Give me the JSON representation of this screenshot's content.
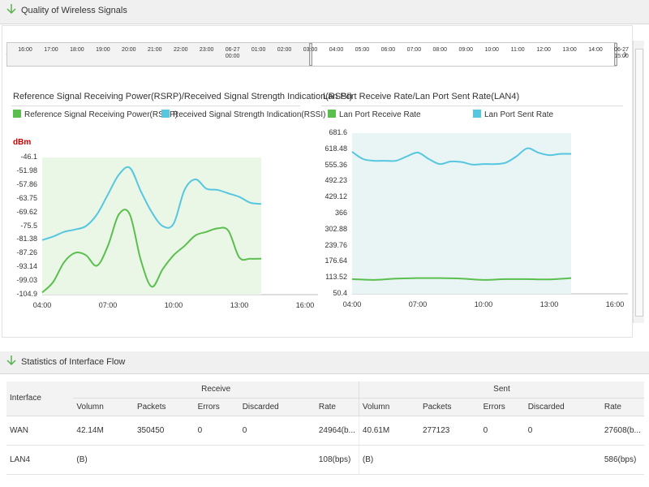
{
  "sections": {
    "wireless_title": "Quality of Wireless Signals",
    "flow_title": "Statistics of Interface Flow"
  },
  "timeline": {
    "ticks": [
      "16:00",
      "17:00",
      "18:00",
      "19:00",
      "20:00",
      "21:00",
      "22:00",
      "23:00",
      "06-27\n00:00",
      "01:00",
      "02:00",
      "03:00",
      "04:00",
      "05:00",
      "06:00",
      "07:00",
      "08:00",
      "09:00",
      "10:00",
      "11:00",
      "12:00",
      "13:00",
      "14:00",
      "06-27\n15:00"
    ]
  },
  "chart_data": [
    {
      "type": "area",
      "title": "Reference Signal Receiving Power(RSRP)/Received Signal Strength Indication(RSSI)",
      "unit": "dBm",
      "x_ticks": [
        "04:00",
        "07:00",
        "10:00",
        "13:00",
        "16:00"
      ],
      "y_ticks": [
        "-46.1",
        "-51.98",
        "-57.86",
        "-63.75",
        "-69.62",
        "-75.5",
        "-81.38",
        "-87.26",
        "-93.14",
        "-99.03",
        "-104.9"
      ],
      "ylim": [
        -104.9,
        -46.1
      ],
      "series": [
        {
          "name": "Reference Signal Receiving Power(RSRP)",
          "color": "#5bbf4f",
          "x": [
            4.0,
            4.5,
            5.0,
            5.5,
            6.0,
            6.5,
            7.0,
            7.5,
            8.0,
            8.5,
            9.0,
            9.5,
            10.0,
            10.5,
            11.0,
            11.5,
            12.0,
            12.5,
            13.0,
            13.5,
            14.0
          ],
          "values": [
            -104.0,
            -99.5,
            -91.0,
            -87.0,
            -88.0,
            -92.5,
            -84.0,
            -70.5,
            -70.5,
            -90.0,
            -101.5,
            -94.0,
            -88.0,
            -84.0,
            -79.5,
            -78.0,
            -76.5,
            -77.5,
            -89.0,
            -89.5,
            -89.5
          ]
        },
        {
          "name": "Received Signal Strength Indication(RSSI)",
          "color": "#57c6e0",
          "x": [
            4.0,
            4.5,
            5.0,
            5.5,
            6.0,
            6.5,
            7.0,
            7.5,
            8.0,
            8.5,
            9.0,
            9.5,
            10.0,
            10.5,
            11.0,
            11.5,
            12.0,
            12.5,
            13.0,
            13.5,
            14.0
          ],
          "values": [
            -81.5,
            -80.0,
            -78.0,
            -77.0,
            -75.5,
            -70.5,
            -62.0,
            -53.5,
            -50.5,
            -60.5,
            -69.5,
            -75.5,
            -74.5,
            -60.0,
            -55.5,
            -59.5,
            -60.0,
            -61.5,
            -63.0,
            -65.5,
            -66.0
          ]
        }
      ]
    },
    {
      "type": "area",
      "title": "Lan Port Receive Rate/Lan Port Sent Rate(LAN4)",
      "x_ticks": [
        "04:00",
        "07:00",
        "10:00",
        "13:00",
        "16:00"
      ],
      "y_ticks": [
        "681.6",
        "618.48",
        "555.36",
        "492.23",
        "429.12",
        "366",
        "302.88",
        "239.76",
        "176.64",
        "113.52",
        "50.4"
      ],
      "ylim": [
        50.4,
        681.6
      ],
      "series": [
        {
          "name": "Lan Port Receive Rate",
          "color": "#5bbf4f",
          "x": [
            4.0,
            5.0,
            6.0,
            7.0,
            8.0,
            9.0,
            10.0,
            11.0,
            12.0,
            13.0,
            14.0
          ],
          "values": [
            108,
            105,
            110,
            112,
            112,
            110,
            105,
            108,
            108,
            107,
            112
          ]
        },
        {
          "name": "Lan Port Sent Rate",
          "color": "#57c6e0",
          "x": [
            4.0,
            4.5,
            5.0,
            5.5,
            6.0,
            6.5,
            7.0,
            7.5,
            8.0,
            8.5,
            9.0,
            9.5,
            10.0,
            10.5,
            11.0,
            11.5,
            12.0,
            12.5,
            13.0,
            13.5,
            14.0
          ],
          "values": [
            608,
            580,
            573,
            573,
            573,
            590,
            605,
            580,
            560,
            570,
            568,
            558,
            560,
            560,
            565,
            590,
            622,
            605,
            595,
            600,
            600
          ]
        }
      ]
    }
  ],
  "flow_table": {
    "headers": {
      "interface": "Interface",
      "receive": "Receive",
      "sent": "Sent",
      "columns": [
        "Volumn",
        "Packets",
        "Errors",
        "Discarded",
        "Rate",
        "Volumn",
        "Packets",
        "Errors",
        "Discarded",
        "Rate"
      ]
    },
    "rows": [
      {
        "interface": "WAN",
        "cells": [
          "42.14M",
          "350450",
          "0",
          "0",
          "24964(b...",
          "40.61M",
          "277123",
          "0",
          "0",
          "27608(b..."
        ]
      },
      {
        "interface": "LAN4",
        "cells": [
          "(B)",
          "",
          "",
          "",
          "108(bps)",
          "(B)",
          "",
          "",
          "",
          "586(bps)"
        ]
      }
    ]
  },
  "colors": {
    "rsrp_fill": "#eaf6e6",
    "rssi_fill": "#e4f5ec",
    "lan_fill": "#e8f5f4"
  }
}
